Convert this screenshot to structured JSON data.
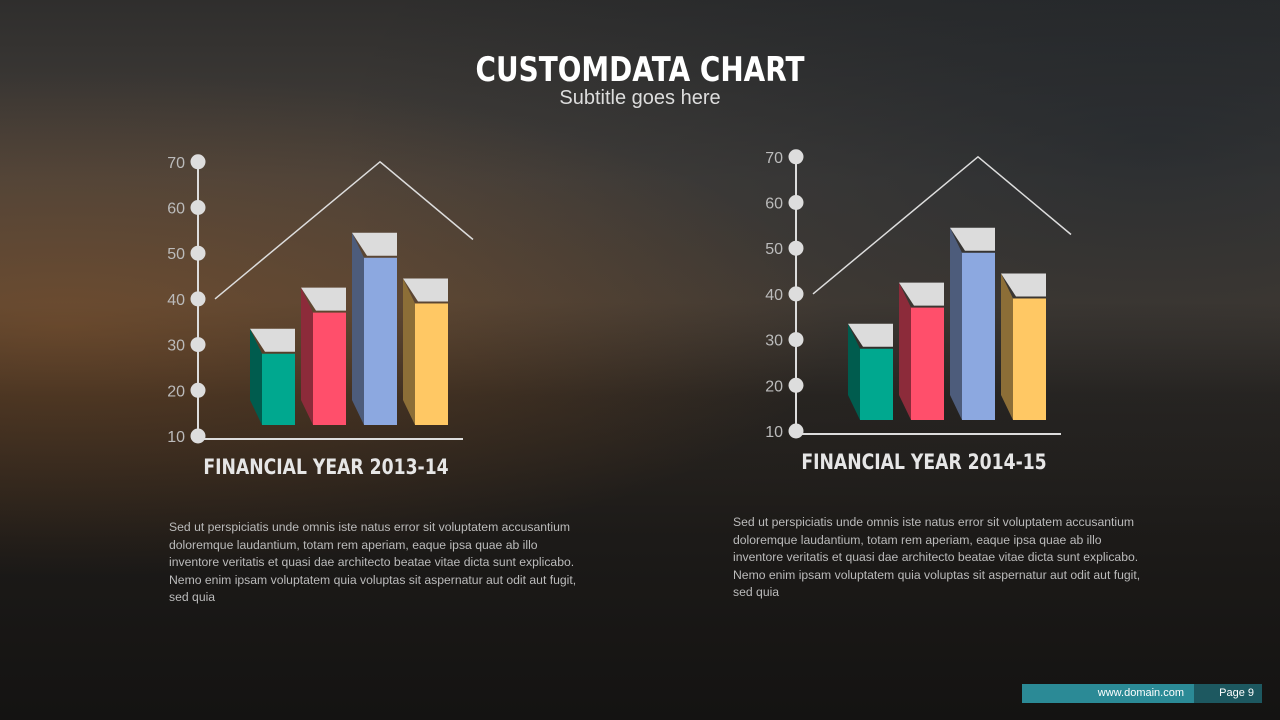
{
  "title": "CUSTOMDATA CHART",
  "subtitle": "Subtitle goes here",
  "chart_data": [
    {
      "type": "bar",
      "title": "FINANCIAL YEAR 2013-14",
      "ylim": [
        10,
        70
      ],
      "yticks": [
        10,
        20,
        30,
        40,
        50,
        60,
        70
      ],
      "values": [
        28,
        37,
        49,
        39
      ],
      "colors": [
        "#00a88f",
        "#ff4f6b",
        "#8ca8e0",
        "#ffc864"
      ],
      "line": [
        40,
        70,
        53
      ]
    },
    {
      "type": "bar",
      "title": "FINANCIAL YEAR 2014-15",
      "ylim": [
        10,
        70
      ],
      "yticks": [
        10,
        20,
        30,
        40,
        50,
        60,
        70
      ],
      "values": [
        28,
        37,
        49,
        39
      ],
      "colors": [
        "#00a88f",
        "#ff4f6b",
        "#8ca8e0",
        "#ffc864"
      ],
      "line": [
        40,
        70,
        53
      ]
    }
  ],
  "paragraphs": [
    "Sed ut perspiciatis unde omnis iste natus error sit voluptatem accusantium doloremque laudantium, totam rem aperiam, eaque ipsa quae ab illo inventore veritatis et quasi  dae architecto beatae vitae dicta sunt explicabo. Nemo enim ipsam voluptatem quia voluptas sit aspernatur aut odit aut fugit, sed quia",
    "Sed ut perspiciatis unde omnis iste natus error sit voluptatem accusantium doloremque laudantium, totam rem aperiam, eaque ipsa quae ab illo inventore veritatis et quasi  dae architecto beatae vitae dicta sunt explicabo. Nemo enim ipsam voluptatem quia voluptas sit aspernatur aut odit aut fugit, sed quia"
  ],
  "footer": {
    "url": "www.domain.com",
    "page": "Page 9"
  }
}
